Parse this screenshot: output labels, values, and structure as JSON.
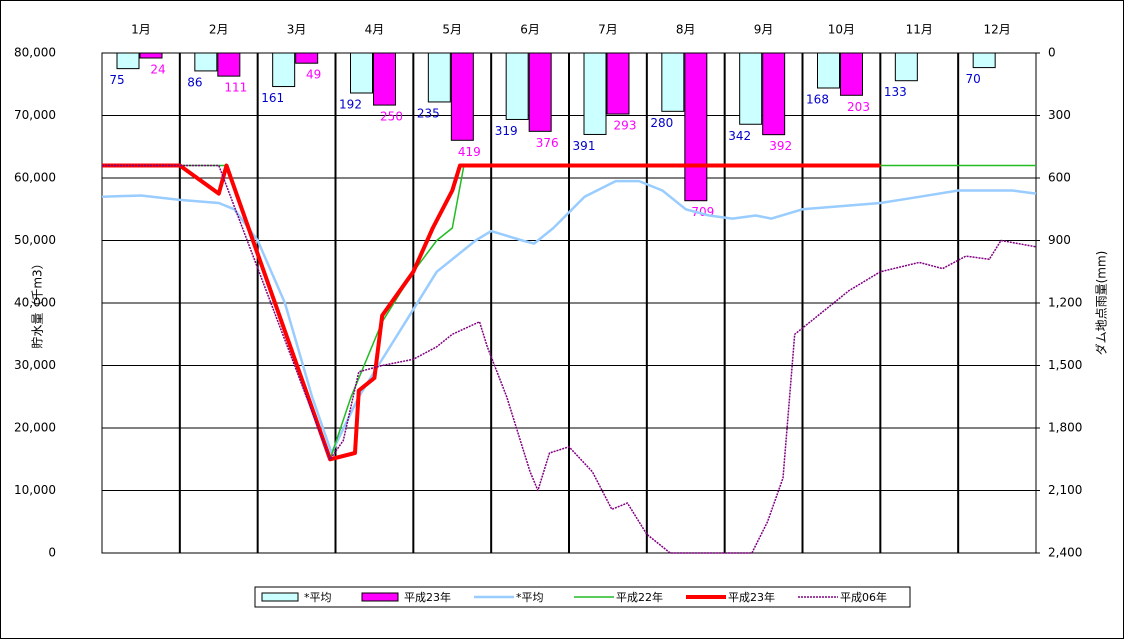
{
  "chart_data": {
    "type": "combo",
    "y_axis_label": "貯水量（千m3）",
    "y2_axis_label": "ダム地点雨量(mm)",
    "categories": [
      "1月",
      "2月",
      "3月",
      "4月",
      "5月",
      "6月",
      "7月",
      "8月",
      "9月",
      "10月",
      "11月",
      "12月"
    ],
    "xlim": [
      0,
      12
    ],
    "ylim": [
      0,
      80000
    ],
    "yticks": [
      0,
      {
        "value": 10000,
        "label": "10,000"
      },
      {
        "value": 20000,
        "label": "20,000"
      },
      {
        "value": 30000,
        "label": "30,000"
      },
      {
        "value": 40000,
        "label": "40,000"
      },
      {
        "value": 50000,
        "label": "50,000"
      },
      {
        "value": 60000,
        "label": "60,000"
      },
      {
        "value": 70000,
        "label": "70,000"
      },
      {
        "value": 80000,
        "label": "80,000"
      }
    ],
    "y2lim": [
      0,
      2400
    ],
    "y2_inverted": true,
    "y2ticks": [
      0,
      300,
      600,
      900,
      {
        "value": 1200,
        "label": "1,200"
      },
      {
        "value": 1500,
        "label": "1,500"
      },
      {
        "value": 1800,
        "label": "1,800"
      },
      {
        "value": 2100,
        "label": "2,100"
      },
      {
        "value": 2400,
        "label": "2,400"
      }
    ],
    "grid": true,
    "legend": "bottom",
    "series": [
      {
        "name": "*平均",
        "type": "bar",
        "axis": "y2",
        "color": "#ccffff",
        "label_color": "#0000cc",
        "values": [
          75,
          86,
          161,
          192,
          235,
          319,
          391,
          280,
          342,
          168,
          133,
          70
        ]
      },
      {
        "name": "平成23年",
        "type": "bar",
        "axis": "y2",
        "color": "#ff00ff",
        "label_color": "#ff00ff",
        "values": [
          24,
          111,
          49,
          250,
          419,
          376,
          293,
          709,
          392,
          203,
          null,
          null
        ]
      },
      {
        "name": "*平均",
        "type": "line",
        "color": "#99ccff",
        "width": 2.5,
        "x": [
          0,
          0.5,
          1.0,
          1.5,
          1.7,
          2.0,
          2.35,
          2.7,
          2.95,
          3.3,
          3.55,
          3.9,
          4.3,
          4.8,
          5.0,
          5.4,
          5.55,
          5.8,
          6.2,
          6.6,
          6.9,
          7.2,
          7.5,
          7.8,
          8.1,
          8.4,
          8.6,
          9.0,
          9.5,
          10.0,
          10.5,
          11.0,
          11.7,
          12
        ],
        "values": [
          57000,
          57200,
          56500,
          56000,
          55000,
          50000,
          40000,
          25000,
          16000,
          25000,
          30000,
          37000,
          45000,
          50000,
          51500,
          50000,
          49500,
          52000,
          57000,
          59500,
          59500,
          58000,
          55000,
          54000,
          53500,
          54000,
          53500,
          55000,
          55500,
          56000,
          57000,
          58000,
          58000,
          57500
        ]
      },
      {
        "name": "平成22年",
        "type": "line",
        "color": "#22bb22",
        "width": 1.5,
        "x": [
          0,
          1.5,
          1.6,
          2.93,
          3.2,
          3.6,
          4.0,
          4.3,
          4.5,
          4.65,
          12
        ],
        "values": [
          62000,
          62000,
          62000,
          15000,
          25000,
          37000,
          45000,
          50000,
          52000,
          62000,
          62000
        ]
      },
      {
        "name": "平成23年",
        "type": "line",
        "color": "#ff0000",
        "width": 4,
        "x": [
          0,
          1.0,
          1.5,
          1.6,
          2.93,
          3.25,
          3.3,
          3.5,
          3.6,
          4.0,
          4.25,
          4.5,
          4.6,
          10.0
        ],
        "values": [
          62000,
          62000,
          57500,
          62000,
          15000,
          16000,
          26000,
          28000,
          38000,
          45000,
          52000,
          58000,
          62000,
          62000
        ]
      },
      {
        "name": "平成06年",
        "type": "line",
        "color": "#800080",
        "width": 1.5,
        "dash": true,
        "x": [
          0,
          1.5,
          2.93,
          3.1,
          3.3,
          3.6,
          4.0,
          4.3,
          4.5,
          4.85,
          4.95,
          5.2,
          5.5,
          5.6,
          5.75,
          6.0,
          6.3,
          6.55,
          6.75,
          7.0,
          7.3,
          8.0,
          8.35,
          8.55,
          8.75,
          8.9,
          9.2,
          9.6,
          10.0,
          10.5,
          10.8,
          11.1,
          11.4,
          11.55,
          12
        ],
        "values": [
          62000,
          62000,
          15000,
          18000,
          29000,
          30000,
          31000,
          33000,
          35000,
          37000,
          33000,
          25000,
          13000,
          10000,
          16000,
          17000,
          13000,
          7000,
          8000,
          3000,
          0,
          0,
          0,
          5000,
          12000,
          35000,
          38000,
          42000,
          45000,
          46500,
          45500,
          47500,
          47000,
          50000,
          49000
        ]
      }
    ]
  }
}
